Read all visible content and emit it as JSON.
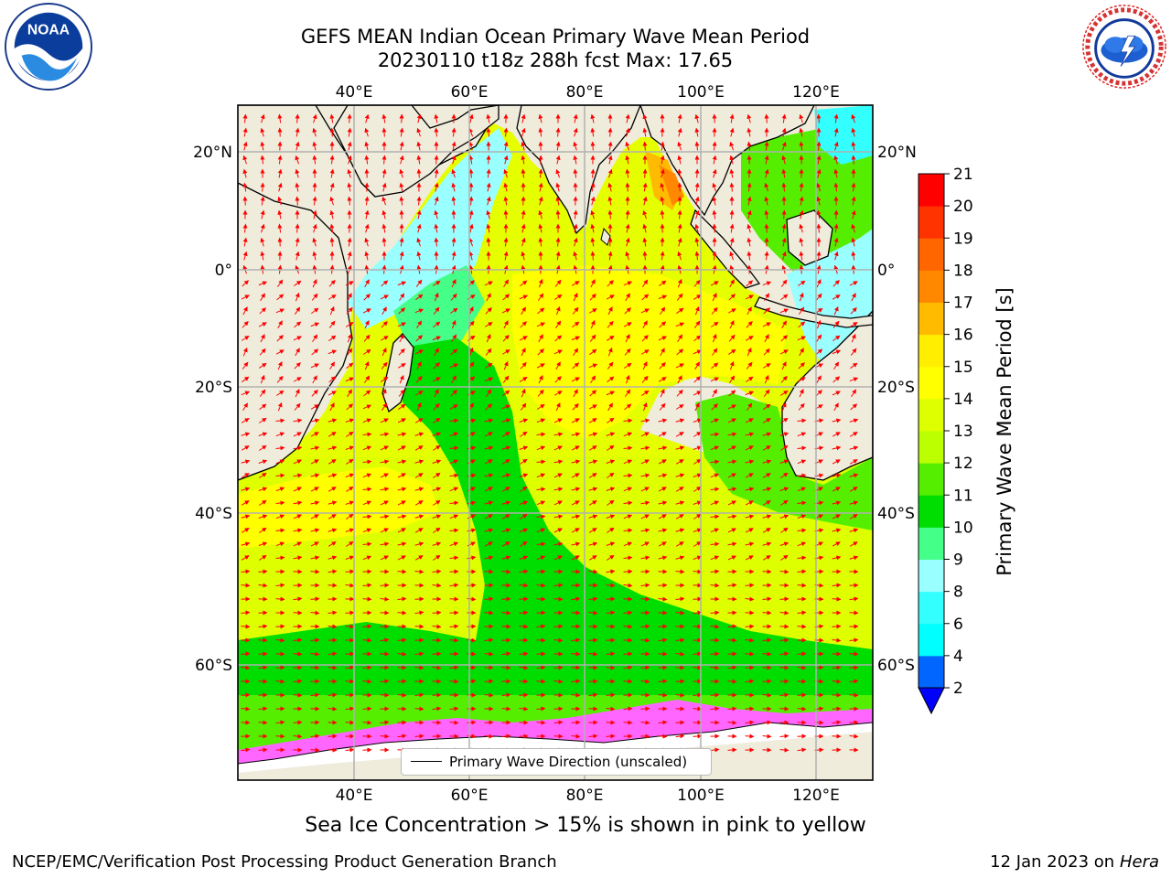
{
  "header": {
    "title_line1": "GEFS MEAN Indian Ocean Primary Wave Mean Period",
    "title_line2": "20230110 t18z 288h fcst   Max: 17.65"
  },
  "logos": {
    "left": {
      "icon": "noaa-logo",
      "text": "NOAA"
    },
    "right": {
      "icon": "national-weather-service-logo",
      "text": "NATIONAL WEATHER SERVICE"
    }
  },
  "map": {
    "lon_ticks_top": [
      "40°E",
      "60°E",
      "80°E",
      "100°E",
      "120°E"
    ],
    "lon_ticks_bottom": [
      "40°E",
      "60°E",
      "80°E",
      "100°E",
      "120°E"
    ],
    "lat_ticks_left": [
      "20°N",
      "0°",
      "20°S",
      "40°S",
      "60°S"
    ],
    "lat_ticks_right": [
      "20°N",
      "0°",
      "20°S",
      "40°S",
      "60°S"
    ],
    "legend_label": "Primary Wave Direction (unscaled)",
    "colors": {
      "land": "#efecdc",
      "vector": "#ff0000",
      "grid": "#b0b0b0"
    }
  },
  "colorbar": {
    "label": "Primary Wave Mean Period [s]",
    "tick_labels": [
      "2",
      "4",
      "6",
      "8",
      "9",
      "10",
      "11",
      "12",
      "13",
      "14",
      "15",
      "16",
      "17",
      "18",
      "19",
      "20",
      "21"
    ],
    "colors": [
      "#0066ff",
      "#00ffff",
      "#33ffff",
      "#99ffff",
      "#44ff88",
      "#00dd00",
      "#55ee00",
      "#bbff00",
      "#ddff00",
      "#ffff00",
      "#ffee00",
      "#ffbb00",
      "#ff8800",
      "#ff6600",
      "#ff3300",
      "#ff0000"
    ],
    "extend_color": "#0000ff"
  },
  "subtitle": "Sea Ice Concentration > 15% is shown in pink to yellow",
  "footer": {
    "left": "NCEP/EMC/Verification Post Processing Product Generation Branch",
    "right_date": "12 Jan 2023 on",
    "right_host": "Hera"
  }
}
